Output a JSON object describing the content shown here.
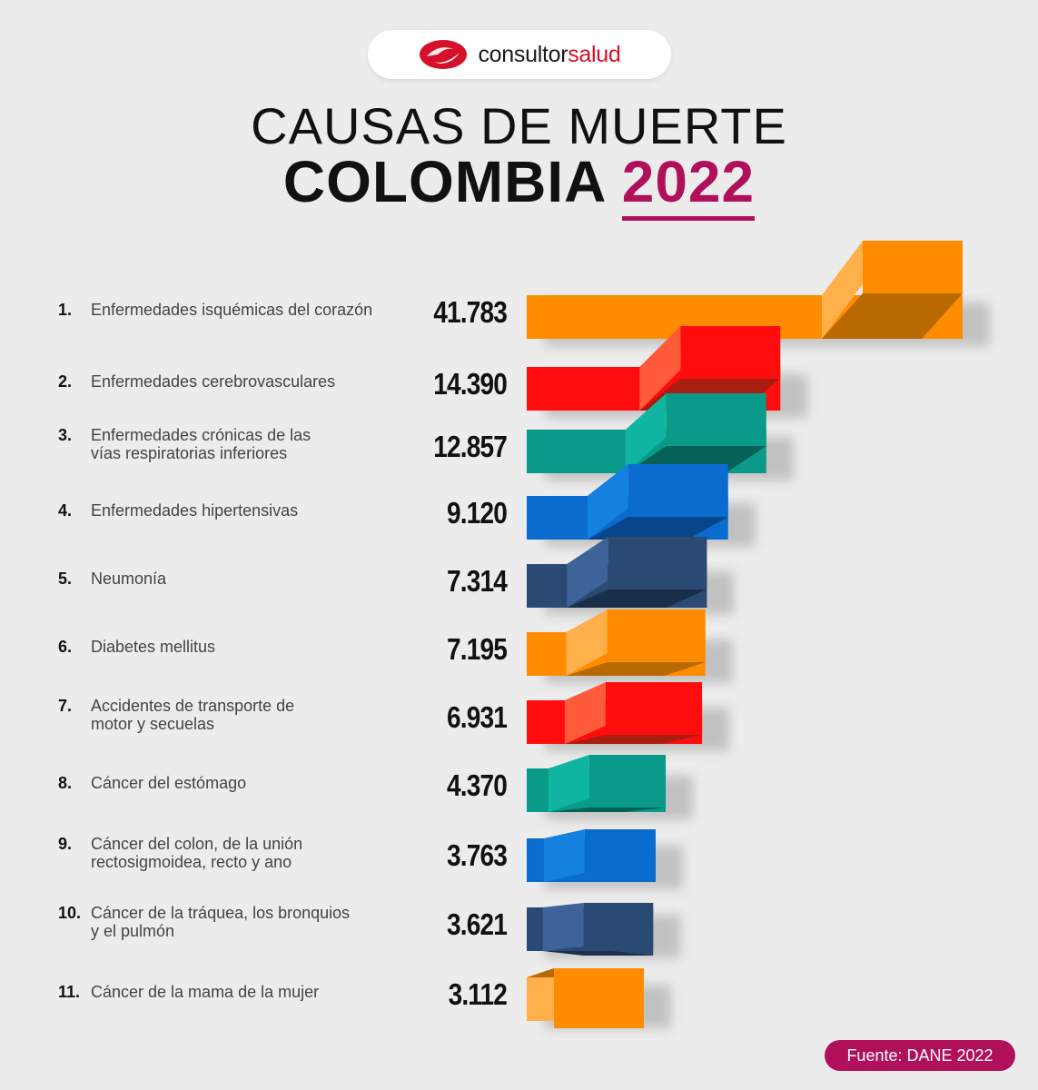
{
  "brand": {
    "name_part1": "consultor",
    "name_part2": "salud"
  },
  "title": {
    "line1": "CAUSAS DE MUERTE",
    "line2": "COLOMBIA",
    "year": "2022"
  },
  "source": "Fuente: DANE 2022",
  "colors": {
    "orange": "#ff8c00",
    "red": "#ff2a1a",
    "teal": "#0a9a8a",
    "blue": "#0a6ccf",
    "navy": "#2b4a73",
    "accent": "#b0105a"
  },
  "chart_data": {
    "type": "bar",
    "title": "CAUSAS DE MUERTE COLOMBIA 2022",
    "categories": [
      "Enfermedades isquémicas del corazón",
      "Enfermedades cerebrovasculares",
      "Enfermedades crónicas de las vías respiratorias inferiores",
      "Enfermedades hipertensivas",
      "Neumonía",
      "Diabetes mellitus",
      "Accidentes de transporte de motor y secuelas",
      "Cáncer del estómago",
      "Cáncer del colon, de la unión rectosigmoidea, recto y ano",
      "Cáncer de la tráquea, los bronquios y el pulmón",
      "Cáncer de la mama de la mujer"
    ],
    "values": [
      41783,
      14390,
      12857,
      9120,
      7314,
      7195,
      6931,
      4370,
      3763,
      3621,
      3112
    ],
    "value_labels": [
      "41.783",
      "14.390",
      "12.857",
      "9.120",
      "7.314",
      "7.195",
      "6.931",
      "4.370",
      "3.763",
      "3.621",
      "3.112"
    ],
    "numbers": [
      "1.",
      "2.",
      "3.",
      "4.",
      "5.",
      "6.",
      "7.",
      "8.",
      "9.",
      "10.",
      "11."
    ],
    "label_lines": [
      [
        "Enfermedades isquémicas del corazón"
      ],
      [
        "Enfermedades cerebrovasculares"
      ],
      [
        "Enfermedades crónicas de las",
        "vías respiratorias inferiores"
      ],
      [
        "Enfermedades hipertensivas"
      ],
      [
        "Neumonía"
      ],
      [
        "Diabetes mellitus"
      ],
      [
        "Accidentes de transporte de",
        "motor y secuelas"
      ],
      [
        "Cáncer del estómago"
      ],
      [
        "Cáncer del colon, de la unión",
        "rectosigmoidea, recto y ano"
      ],
      [
        "Cáncer de la tráquea, los bronquios",
        "y el pulmón"
      ],
      [
        "Cáncer de la mama de la mujer"
      ]
    ],
    "bar_colors": [
      "orange",
      "red",
      "teal",
      "blue",
      "navy",
      "orange",
      "red",
      "teal",
      "blue",
      "navy",
      "orange"
    ],
    "sorted": "descending",
    "grid": false,
    "legend": "none"
  }
}
